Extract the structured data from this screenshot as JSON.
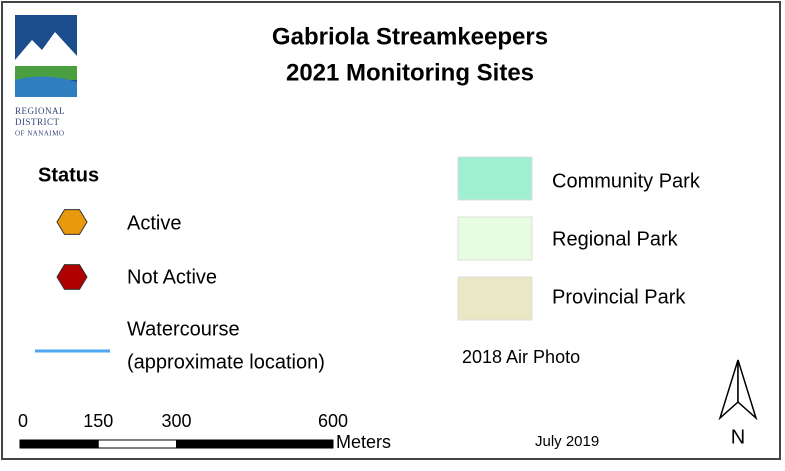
{
  "title": [
    "Gabriola Streamkeepers",
    "2021 Monitoring Sites"
  ],
  "logo": {
    "lines": [
      "Regional",
      "District",
      "of Nanaimo"
    ]
  },
  "status": {
    "heading": "Status",
    "items": [
      {
        "label": "Active",
        "color": "#e89a0c"
      },
      {
        "label": "Not Active",
        "color": "#b00000"
      }
    ]
  },
  "watercourse": {
    "label": [
      "Watercourse",
      "(approximate location)"
    ],
    "color": "#4ea7f0"
  },
  "parks": [
    {
      "label": "Community Park",
      "color": "#9ff0d2"
    },
    {
      "label": "Regional Park",
      "color": "#e6fde2"
    },
    {
      "label": "Provincial Park",
      "color": "#e9e8c4"
    }
  ],
  "air_photo": "2018 Air Photo",
  "scale_bar": {
    "ticks": [
      0,
      150,
      300,
      600
    ],
    "unit": "Meters"
  },
  "date": "July 2019",
  "north": "N"
}
